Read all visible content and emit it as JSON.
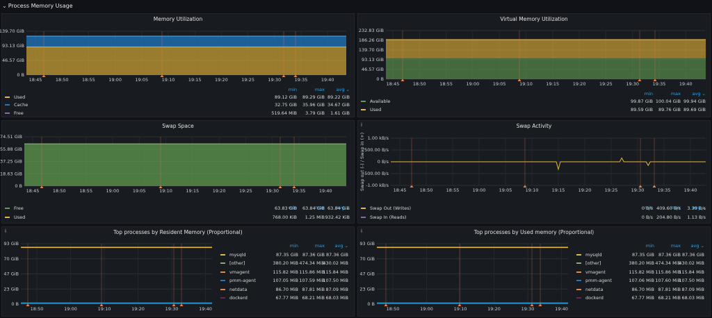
{
  "row_title": "Process Memory Usage",
  "colors": {
    "yellow": "#eab839",
    "blue": "#1f78c1",
    "green": "#629e51",
    "orange": "#ef843c",
    "annotation": "#f2774e"
  },
  "panels": {
    "mem": {
      "title": "Memory Utilization",
      "y_ticks": [
        "139.70 GiB",
        "93.13 GiB",
        "46.57 GiB",
        "0 B"
      ],
      "x_ticks": [
        "18:45",
        "18:50",
        "18:55",
        "19:00",
        "19:05",
        "19:10",
        "19:15",
        "19:20",
        "19:25",
        "19:30",
        "19:35",
        "19:40"
      ],
      "legend_head": {
        "min": "min",
        "max": "max",
        "avg": "avg ⌄"
      },
      "legend": [
        {
          "name": "Used",
          "min": "89.12 GiB",
          "max": "89.29 GiB",
          "avg": "89.22 GiB"
        },
        {
          "name": "Cache",
          "min": "32.75 GiB",
          "max": "35.96 GiB",
          "avg": "34.67 GiB"
        },
        {
          "name": "Free",
          "min": "519.64 MiB",
          "max": "3.79 GiB",
          "avg": "1.61 GiB"
        }
      ]
    },
    "vmem": {
      "title": "Virtual Memory Utilization",
      "y_ticks": [
        "232.83 GiB",
        "186.26 GiB",
        "139.70 GiB",
        "93.13 GiB",
        "46.57 GiB",
        "0 B"
      ],
      "x_ticks": [
        "18:45",
        "18:50",
        "18:55",
        "19:00",
        "19:05",
        "19:10",
        "19:15",
        "19:20",
        "19:25",
        "19:30",
        "19:35",
        "19:40"
      ],
      "legend_head": {
        "min": "min",
        "max": "max",
        "avg": "avg ⌄"
      },
      "legend": [
        {
          "name": "Available",
          "min": "99.87 GiB",
          "max": "100.04 GiB",
          "avg": "99.94 GiB"
        },
        {
          "name": "Used",
          "min": "89.59 GiB",
          "max": "89.76 GiB",
          "avg": "89.69 GiB"
        }
      ]
    },
    "swap": {
      "title": "Swap Space",
      "y_ticks": [
        "74.51 GiB",
        "55.88 GiB",
        "37.25 GiB",
        "18.63 GiB",
        "0 B"
      ],
      "x_ticks": [
        "18:45",
        "18:50",
        "18:55",
        "19:00",
        "19:05",
        "19:10",
        "19:15",
        "19:20",
        "19:25",
        "19:30",
        "19:35",
        "19:40"
      ],
      "legend_head": {
        "min": "min",
        "max": "max",
        "avg": "avg ⌄"
      },
      "legend": [
        {
          "name": "Free",
          "min": "63.83 GiB",
          "max": "63.84 GiB",
          "avg": "63.84 GiB"
        },
        {
          "name": "Used",
          "min": "768.00 KiB",
          "max": "1.25 MiB",
          "avg": "932.42 KiB"
        }
      ]
    },
    "swapact": {
      "title": "Swap Activity",
      "info": "i",
      "ylabel": "Swap out (-) / Swap in (+)",
      "y_ticks": [
        "1.00 kB/s",
        "500.00 B/s",
        "0 B/s",
        "-500.00 B/s",
        "-1.00 kB/s"
      ],
      "x_ticks": [
        "18:45",
        "18:50",
        "18:55",
        "19:00",
        "19:05",
        "19:10",
        "19:15",
        "19:20",
        "19:25",
        "19:30",
        "19:35",
        "19:40"
      ],
      "legend_head": {
        "min": "min",
        "max": "max",
        "avg": "avg ⌄"
      },
      "legend": [
        {
          "name": "Swap Out (Writes)",
          "min": "0 B/s",
          "max": "409.60 B/s",
          "avg": "3.39 B/s"
        },
        {
          "name": "Swap In (Reads)",
          "min": "0 B/s",
          "max": "204.80 B/s",
          "avg": "1.13 B/s"
        }
      ]
    },
    "toprss": {
      "title": "Top processes by Resident Memory (Proportional)",
      "info": "i",
      "y_ticks": [
        "93 GiB",
        "70 GiB",
        "47 GiB",
        "23 GiB",
        "0 B"
      ],
      "x_ticks": [
        "18:50",
        "19:00",
        "19:10",
        "19:20",
        "19:30",
        "19:40"
      ],
      "legend_head": {
        "min": "min",
        "max": "max",
        "avg": "avg ⌄"
      },
      "legend": [
        {
          "name": "mysqld",
          "min": "87.35 GiB",
          "max": "87.36 GiB",
          "avg": "87.36 GiB"
        },
        {
          "name": "[other]",
          "min": "380.20 MiB",
          "max": "474.34 MiB",
          "avg": "430.02 MiB"
        },
        {
          "name": "vmagent",
          "min": "115.82 MiB",
          "max": "115.86 MiB",
          "avg": "115.84 MiB"
        },
        {
          "name": "pmm-agent",
          "min": "107.05 MiB",
          "max": "107.59 MiB",
          "avg": "107.50 MiB"
        },
        {
          "name": "netdata",
          "min": "86.70 MiB",
          "max": "87.81 MiB",
          "avg": "87.09 MiB"
        },
        {
          "name": "dockerd",
          "min": "67.77 MiB",
          "max": "68.21 MiB",
          "avg": "68.03 MiB"
        }
      ]
    },
    "topused": {
      "title": "Top processes by Used memory (Proportional)",
      "info": "i",
      "y_ticks": [
        "93 GiB",
        "70 GiB",
        "47 GiB",
        "23 GiB",
        "0 B"
      ],
      "x_ticks": [
        "18:50",
        "19:00",
        "19:10",
        "19:20",
        "19:30",
        "19:40"
      ],
      "legend_head": {
        "min": "min",
        "max": "max",
        "avg": "avg ⌄"
      },
      "legend": [
        {
          "name": "mysqld",
          "min": "87.35 GiB",
          "max": "87.36 GiB",
          "avg": "87.36 GiB"
        },
        {
          "name": "[other]",
          "min": "380.20 MiB",
          "max": "474.34 MiB",
          "avg": "430.02 MiB"
        },
        {
          "name": "vmagent",
          "min": "115.82 MiB",
          "max": "115.86 MiB",
          "avg": "115.84 MiB"
        },
        {
          "name": "pmm-agent",
          "min": "107.06 MiB",
          "max": "107.60 MiB",
          "avg": "107.50 MiB"
        },
        {
          "name": "netdata",
          "min": "86.70 MiB",
          "max": "87.81 MiB",
          "avg": "87.09 MiB"
        },
        {
          "name": "dockerd",
          "min": "67.77 MiB",
          "max": "68.21 MiB",
          "avg": "68.03 MiB"
        }
      ]
    }
  },
  "chart_data": [
    {
      "type": "area",
      "title": "Memory Utilization",
      "ylim": [
        0,
        139.7
      ],
      "y_unit": "GiB",
      "series": [
        {
          "name": "Used",
          "value": 89.22
        },
        {
          "name": "Cache",
          "value": 34.67
        },
        {
          "name": "Free",
          "value": 1.61
        }
      ]
    },
    {
      "type": "area",
      "title": "Virtual Memory Utilization",
      "ylim": [
        0,
        232.83
      ],
      "y_unit": "GiB",
      "series": [
        {
          "name": "Available",
          "value": 99.94
        },
        {
          "name": "Used",
          "value": 89.69
        }
      ]
    },
    {
      "type": "area",
      "title": "Swap Space",
      "ylim": [
        0,
        74.51
      ],
      "y_unit": "GiB",
      "series": [
        {
          "name": "Free",
          "value": 63.84
        },
        {
          "name": "Used",
          "value": 0.0009
        }
      ]
    },
    {
      "type": "line",
      "title": "Swap Activity",
      "ylim": [
        -1000,
        1000
      ],
      "y_unit": "B/s",
      "series": [
        {
          "name": "Swap Out (Writes)",
          "spikes": [
            {
              "x": "19:15",
              "y": -409.6
            },
            {
              "x": "19:32",
              "y": -200
            }
          ]
        },
        {
          "name": "Swap In (Reads)",
          "spikes": [
            {
              "x": "19:27",
              "y": 204.8
            }
          ]
        }
      ]
    },
    {
      "type": "line",
      "title": "Top processes by Resident Memory (Proportional)",
      "ylim": [
        0,
        93
      ],
      "y_unit": "GiB",
      "series": [
        {
          "name": "mysqld",
          "value": 87.36
        },
        {
          "name": "[other]",
          "value": 0.42
        }
      ]
    },
    {
      "type": "line",
      "title": "Top processes by Used memory (Proportional)",
      "ylim": [
        0,
        93
      ],
      "y_unit": "GiB",
      "series": [
        {
          "name": "mysqld",
          "value": 87.36
        },
        {
          "name": "[other]",
          "value": 0.42
        }
      ]
    }
  ]
}
